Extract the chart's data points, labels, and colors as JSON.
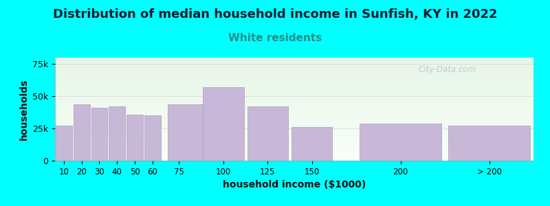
{
  "title": "Distribution of median household income in Sunfish, KY in 2022",
  "subtitle": "White residents",
  "xlabel": "household income ($1000)",
  "ylabel": "households",
  "bg_color": "#00FFFF",
  "plot_bg_top": "#e8f5e8",
  "plot_bg_bottom": "#f8fff8",
  "bar_color": "#c8b8d8",
  "bar_edge_color": "#a898c0",
  "title_color": "#1a1a2e",
  "subtitle_color": "#2a8a8a",
  "categories": [
    "10",
    "20",
    "30",
    "40",
    "50",
    "60",
    "75",
    "100",
    "125",
    "150",
    "200",
    "> 200"
  ],
  "values": [
    27000,
    44000,
    41000,
    42000,
    36000,
    35000,
    44000,
    57000,
    42000,
    26000,
    29000,
    27000
  ],
  "x_lefts": [
    5,
    15,
    25,
    35,
    45,
    55,
    67.5,
    87.5,
    112.5,
    137.5,
    175,
    225
  ],
  "x_widths": [
    10,
    10,
    10,
    10,
    10,
    10,
    25,
    25,
    25,
    25,
    50,
    50
  ],
  "x_ticks": [
    10,
    20,
    30,
    40,
    50,
    60,
    75,
    100,
    125,
    150,
    200
  ],
  "ylim": [
    0,
    80000
  ],
  "yticks": [
    0,
    25000,
    50000,
    75000
  ],
  "ytick_labels": [
    "0",
    "25k",
    "50k",
    "75k"
  ],
  "title_fontsize": 13,
  "subtitle_fontsize": 11,
  "axis_label_fontsize": 10,
  "watermark": "City-Data.com"
}
